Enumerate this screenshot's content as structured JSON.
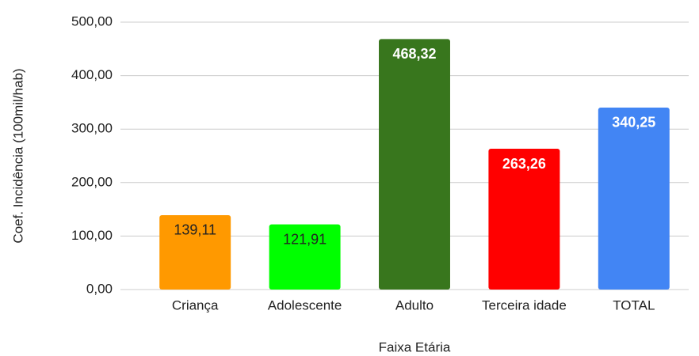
{
  "chart_data": {
    "type": "bar",
    "x_label": "Faixa Etária",
    "y_label": "Coef. Incidência (100mil/hab)",
    "categories": [
      "Criança",
      "Adolescente",
      "Adulto",
      "Terceira idade",
      "TOTAL"
    ],
    "values": [
      139.11,
      121.91,
      468.32,
      263.26,
      340.25
    ],
    "value_labels": [
      "139,11",
      "121,91",
      "468,32",
      "263,26",
      "340,25"
    ],
    "colors": [
      "#ff9900",
      "#00ff00",
      "#38761d",
      "#ff0000",
      "#4285f4"
    ],
    "value_label_colors": [
      "#222222",
      "#222222",
      "#ffffff",
      "#ffffff",
      "#ffffff"
    ],
    "ylim": [
      0,
      500
    ],
    "yticks": [
      {
        "value": 0,
        "label": "0,00"
      },
      {
        "value": 100,
        "label": "100,00"
      },
      {
        "value": 200,
        "label": "200,00"
      },
      {
        "value": 300,
        "label": "300,00"
      },
      {
        "value": 400,
        "label": "400,00"
      },
      {
        "value": 500,
        "label": "500,00"
      }
    ],
    "grid": true
  }
}
